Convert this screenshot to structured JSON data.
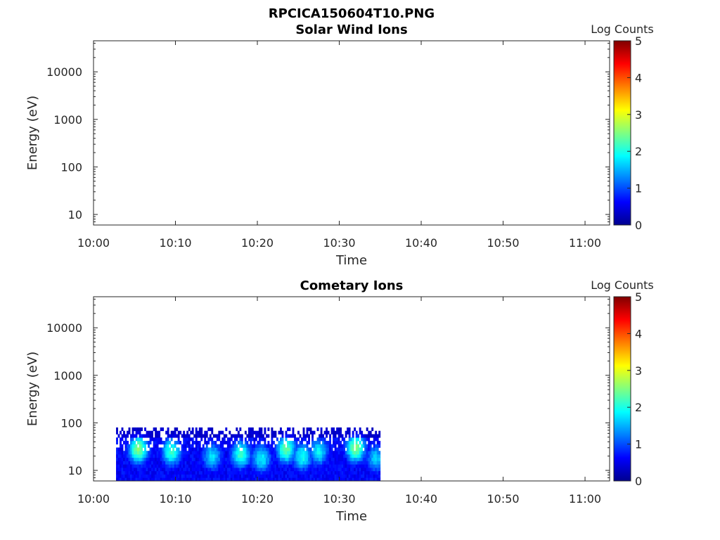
{
  "figure": {
    "title": "RPCICA150604T10.PNG"
  },
  "colors": {
    "colormap": "jet",
    "axis": "#262626",
    "background": "#ffffff"
  },
  "chart_data": [
    {
      "type": "heatmap",
      "title": "Solar Wind Ions",
      "xlabel": "Time",
      "ylabel": "Energy (eV)",
      "y_scale": "log",
      "ylim": [
        6,
        45000
      ],
      "xlim": [
        "10:00",
        "11:03"
      ],
      "x_ticks": [
        "10:00",
        "10:10",
        "10:20",
        "10:30",
        "10:40",
        "10:50",
        "11:00"
      ],
      "y_ticks": [
        {
          "value": 10,
          "label": "10"
        },
        {
          "value": 100,
          "label": "100"
        },
        {
          "value": 1000,
          "label": "1000"
        },
        {
          "value": 10000,
          "label": "10000"
        }
      ],
      "colorbar": {
        "label": "Log Counts",
        "range": [
          0,
          5
        ],
        "ticks": [
          "0",
          "1",
          "2",
          "3",
          "4",
          "5"
        ]
      },
      "data": []
    },
    {
      "type": "heatmap",
      "title": "Cometary Ions",
      "xlabel": "Time",
      "ylabel": "Energy (eV)",
      "y_scale": "log",
      "ylim": [
        6,
        45000
      ],
      "xlim": [
        "10:00",
        "11:03"
      ],
      "x_ticks": [
        "10:00",
        "10:10",
        "10:20",
        "10:30",
        "10:40",
        "10:50",
        "11:00"
      ],
      "y_ticks": [
        {
          "value": 10,
          "label": "10"
        },
        {
          "value": 100,
          "label": "100"
        },
        {
          "value": 1000,
          "label": "1000"
        },
        {
          "value": 10000,
          "label": "10000"
        }
      ],
      "colorbar": {
        "label": "Log Counts",
        "range": [
          0,
          5
        ],
        "ticks": [
          "0",
          "1",
          "2",
          "3",
          "4",
          "5"
        ]
      },
      "data_time_range": [
        "10:02:45",
        "10:35"
      ],
      "data_energy_range": [
        6,
        80
      ],
      "features": [
        {
          "time": "10:05:30",
          "energy_peak": 28,
          "log_counts_peak": 2.4
        },
        {
          "time": "10:09:30",
          "energy_peak": 25,
          "log_counts_peak": 2.0
        },
        {
          "time": "10:14:30",
          "energy_peak": 20,
          "log_counts_peak": 1.6
        },
        {
          "time": "10:18:00",
          "energy_peak": 22,
          "log_counts_peak": 2.0
        },
        {
          "time": "10:20:30",
          "energy_peak": 18,
          "log_counts_peak": 1.7
        },
        {
          "time": "10:23:30",
          "energy_peak": 28,
          "log_counts_peak": 2.2
        },
        {
          "time": "10:25:30",
          "energy_peak": 20,
          "log_counts_peak": 1.8
        },
        {
          "time": "10:27:30",
          "energy_peak": 25,
          "log_counts_peak": 1.7
        },
        {
          "time": "10:32:00",
          "energy_peak": 30,
          "log_counts_peak": 2.4
        },
        {
          "time": "10:34:30",
          "energy_peak": 18,
          "log_counts_peak": 1.5
        }
      ]
    }
  ]
}
